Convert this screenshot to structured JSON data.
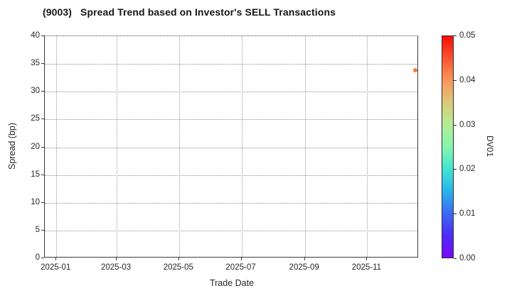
{
  "chart_data": {
    "type": "scatter",
    "title": "(9003)   Spread Trend based on Investor's SELL Transactions",
    "xlabel": "Trade Date",
    "ylabel": "Spread (bp)",
    "x_tick_labels": [
      "2025-01",
      "2025-03",
      "2025-05",
      "2025-07",
      "2025-09",
      "2025-11"
    ],
    "x_tick_dates": [
      "2025-01-01",
      "2025-03-01",
      "2025-05-01",
      "2025-07-01",
      "2025-09-01",
      "2025-11-01"
    ],
    "y_ticks": [
      0,
      5,
      10,
      15,
      20,
      25,
      30,
      35,
      40
    ],
    "ylim": [
      0,
      40
    ],
    "grid": true,
    "grid_style": "dotted",
    "legend": "none",
    "points": [
      {
        "date": "2025-12-19",
        "spread_bp": 33.8,
        "dv01": 0.041,
        "color": "#f57a3f"
      }
    ],
    "colorbar": {
      "label": "DV01",
      "range": [
        0.0,
        0.05
      ],
      "tick_labels": [
        "0.00",
        "0.01",
        "0.02",
        "0.03",
        "0.04",
        "0.05"
      ],
      "tick_values": [
        0.0,
        0.01,
        0.02,
        0.03,
        0.04,
        0.05
      ],
      "colormap": "rainbow",
      "color_stops": {
        "0.00": "#7b05fa",
        "0.01": "#3b6af3",
        "0.02": "#43e4d2",
        "0.03": "#b2ed94",
        "0.04": "#f9975a",
        "0.05": "#f90c07"
      },
      "position": "right"
    },
    "colors": {
      "point_accent": "#f57a3f",
      "grid_gray": "#9a9a9a",
      "axis_dark": "#3d3d3d"
    }
  }
}
